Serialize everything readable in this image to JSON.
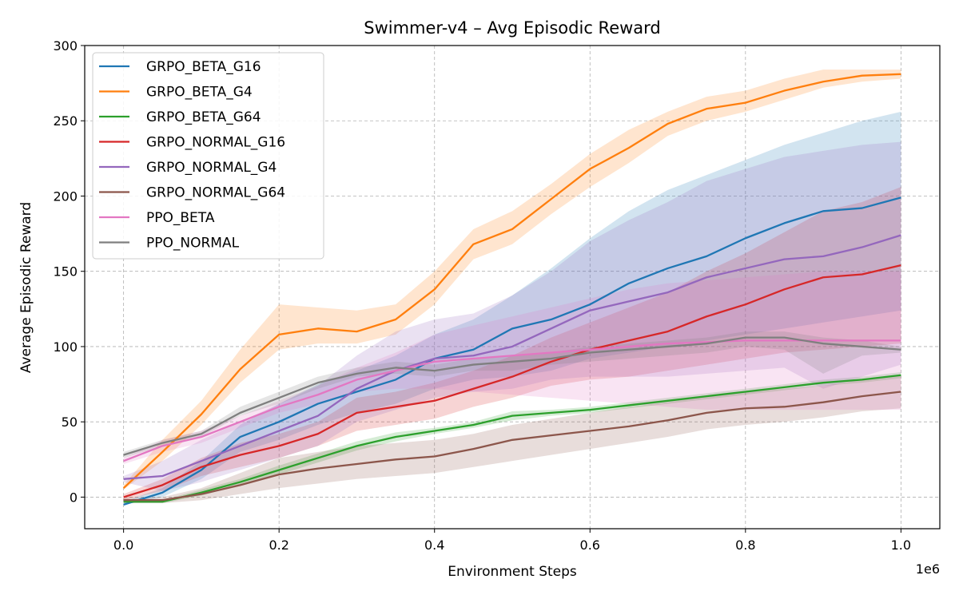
{
  "chart_data": {
    "type": "line",
    "title": "Swimmer-v4 – Avg Episodic Reward",
    "xlabel": "Environment Steps",
    "ylabel": "Average Episodic Reward",
    "x_multiplier_label": "1e6",
    "xlim": [
      -0.05,
      1.05
    ],
    "ylim": [
      -21,
      300
    ],
    "x_ticks": [
      0.0,
      0.2,
      0.4,
      0.6,
      0.8,
      1.0
    ],
    "x_tick_labels": [
      "0.0",
      "0.2",
      "0.4",
      "0.6",
      "0.8",
      "1.0"
    ],
    "y_ticks": [
      0,
      50,
      100,
      150,
      200,
      250,
      300
    ],
    "y_tick_labels": [
      "0",
      "50",
      "100",
      "150",
      "200",
      "250",
      "300"
    ],
    "grid": true,
    "legend_position": "upper-left",
    "x": [
      0.0,
      0.05,
      0.1,
      0.15,
      0.2,
      0.25,
      0.3,
      0.35,
      0.4,
      0.45,
      0.5,
      0.55,
      0.6,
      0.65,
      0.7,
      0.75,
      0.8,
      0.85,
      0.9,
      0.95,
      1.0
    ],
    "series": [
      {
        "name": "GRPO_BETA_G16",
        "color": "#1f77b4",
        "values": [
          -5,
          3,
          18,
          40,
          50,
          62,
          70,
          78,
          92,
          98,
          112,
          118,
          128,
          142,
          152,
          160,
          172,
          182,
          190,
          192,
          199
        ],
        "lower": [
          -5,
          0,
          12,
          30,
          38,
          48,
          56,
          62,
          72,
          78,
          80,
          84,
          92,
          96,
          100,
          104,
          108,
          112,
          116,
          120,
          124
        ],
        "upper": [
          -3,
          6,
          24,
          48,
          62,
          75,
          84,
          94,
          108,
          118,
          134,
          152,
          172,
          190,
          204,
          214,
          224,
          234,
          242,
          250,
          256
        ]
      },
      {
        "name": "GRPO_BETA_G4",
        "color": "#ff7f0e",
        "values": [
          6,
          30,
          55,
          85,
          108,
          112,
          110,
          118,
          138,
          168,
          178,
          198,
          218,
          232,
          248,
          258,
          262,
          270,
          276,
          280,
          281
        ],
        "lower": [
          5,
          24,
          48,
          76,
          98,
          102,
          102,
          108,
          128,
          158,
          168,
          188,
          206,
          222,
          240,
          250,
          256,
          264,
          272,
          276,
          278
        ],
        "upper": [
          8,
          38,
          64,
          98,
          128,
          126,
          124,
          128,
          150,
          178,
          190,
          208,
          228,
          244,
          256,
          266,
          270,
          278,
          284,
          284,
          284
        ]
      },
      {
        "name": "GRPO_BETA_G64",
        "color": "#2ca02c",
        "values": [
          -3,
          -3,
          3,
          10,
          18,
          26,
          34,
          40,
          44,
          48,
          54,
          56,
          58,
          61,
          64,
          67,
          70,
          73,
          76,
          78,
          81
        ],
        "lower": [
          -4,
          -4,
          1,
          8,
          15,
          23,
          31,
          37,
          42,
          46,
          51,
          54,
          56,
          59,
          62,
          65,
          68,
          71,
          74,
          76,
          79
        ],
        "upper": [
          -2,
          -2,
          5,
          12,
          21,
          29,
          37,
          43,
          46,
          50,
          57,
          58,
          60,
          63,
          66,
          69,
          72,
          75,
          78,
          80,
          83
        ]
      },
      {
        "name": "GRPO_NORMAL_G16",
        "color": "#d62728",
        "values": [
          0,
          8,
          20,
          28,
          34,
          42,
          56,
          60,
          64,
          72,
          80,
          90,
          98,
          104,
          110,
          120,
          128,
          138,
          146,
          148,
          154
        ],
        "lower": [
          -2,
          4,
          14,
          20,
          26,
          34,
          44,
          48,
          52,
          60,
          66,
          74,
          78,
          80,
          84,
          88,
          92,
          96,
          98,
          100,
          102
        ],
        "upper": [
          2,
          12,
          26,
          36,
          42,
          50,
          66,
          70,
          76,
          84,
          94,
          106,
          116,
          126,
          136,
          150,
          162,
          176,
          190,
          196,
          206
        ]
      },
      {
        "name": "GRPO_NORMAL_G4",
        "color": "#9467bd",
        "values": [
          12,
          14,
          24,
          34,
          44,
          54,
          72,
          84,
          92,
          94,
          100,
          112,
          124,
          130,
          136,
          146,
          152,
          158,
          160,
          166,
          174
        ],
        "lower": [
          10,
          4,
          10,
          18,
          26,
          34,
          50,
          58,
          66,
          70,
          72,
          78,
          80,
          80,
          80,
          82,
          84,
          86,
          72,
          80,
          88
        ],
        "upper": [
          14,
          24,
          38,
          50,
          62,
          74,
          94,
          110,
          118,
          122,
          134,
          150,
          170,
          184,
          196,
          210,
          218,
          226,
          230,
          234,
          236
        ]
      },
      {
        "name": "GRPO_NORMAL_G64",
        "color": "#8c564b",
        "values": [
          -2,
          -2,
          2,
          8,
          15,
          19,
          22,
          25,
          27,
          32,
          38,
          41,
          44,
          47,
          51,
          56,
          59,
          60,
          63,
          67,
          70
        ],
        "lower": [
          -4,
          -4,
          -2,
          2,
          6,
          9,
          12,
          14,
          16,
          20,
          24,
          28,
          32,
          36,
          40,
          45,
          48,
          50,
          53,
          57,
          59
        ],
        "upper": [
          0,
          0,
          6,
          16,
          26,
          30,
          34,
          36,
          38,
          42,
          48,
          52,
          56,
          60,
          63,
          67,
          70,
          72,
          74,
          78,
          81
        ]
      },
      {
        "name": "PPO_BETA",
        "color": "#e377c2",
        "values": [
          24,
          34,
          40,
          50,
          60,
          68,
          78,
          84,
          90,
          92,
          94,
          96,
          98,
          100,
          102,
          103,
          104,
          104,
          104,
          104,
          104
        ],
        "lower": [
          22,
          30,
          36,
          46,
          56,
          62,
          70,
          72,
          72,
          70,
          68,
          66,
          64,
          62,
          60,
          58,
          58,
          58,
          58,
          58,
          58
        ],
        "upper": [
          26,
          38,
          44,
          54,
          64,
          74,
          86,
          96,
          108,
          114,
          120,
          126,
          132,
          138,
          142,
          144,
          146,
          148,
          150,
          150,
          150
        ]
      },
      {
        "name": "PPO_NORMAL",
        "color": "#7f7f7f",
        "values": [
          28,
          36,
          42,
          56,
          66,
          76,
          82,
          86,
          84,
          88,
          90,
          92,
          96,
          98,
          100,
          102,
          106,
          106,
          102,
          100,
          98
        ],
        "lower": [
          26,
          34,
          40,
          54,
          62,
          72,
          80,
          82,
          80,
          84,
          84,
          88,
          90,
          92,
          94,
          96,
          100,
          98,
          82,
          94,
          96
        ],
        "upper": [
          30,
          38,
          44,
          60,
          70,
          80,
          86,
          90,
          88,
          92,
          94,
          96,
          100,
          102,
          104,
          106,
          110,
          110,
          106,
          104,
          100
        ]
      }
    ]
  }
}
